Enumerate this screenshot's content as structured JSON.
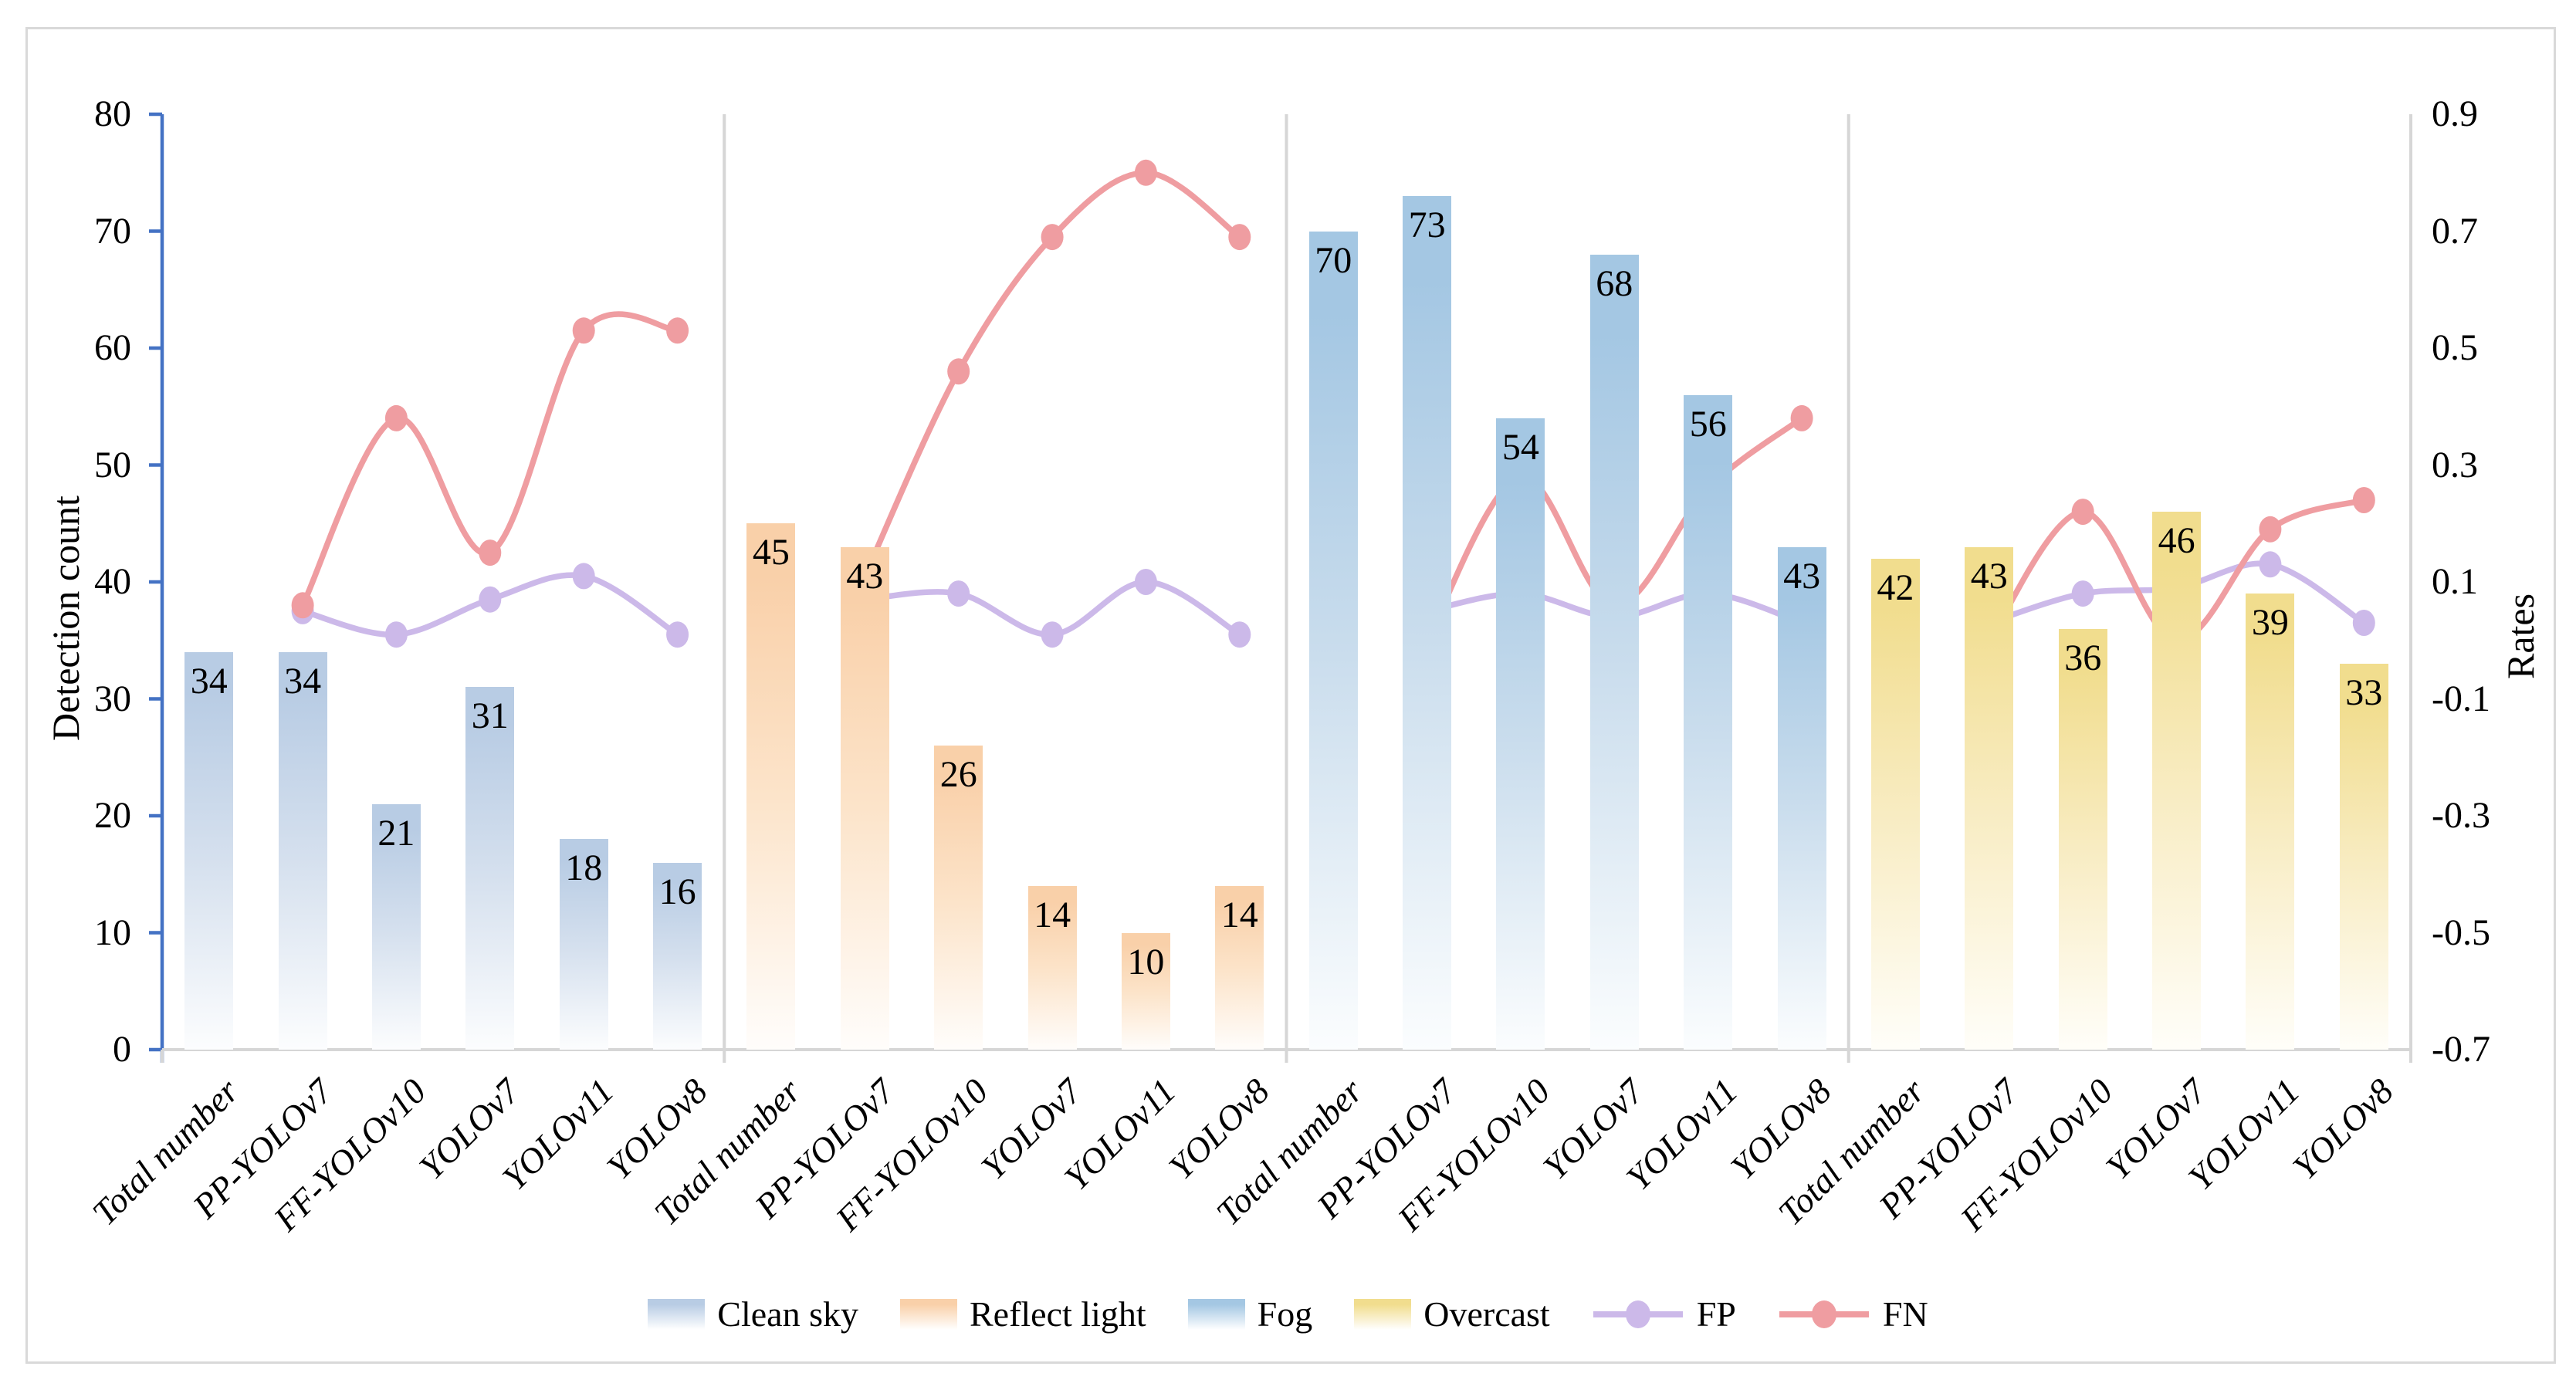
{
  "figure": {
    "background": "#ffffff",
    "border_color": "#d9d9d9"
  },
  "chart_data": {
    "type": "bar+line-combo",
    "categories": [
      "Total number",
      "PP-YOLOv7",
      "FF-YOLOv10",
      "YOLOv7",
      "YOLOv11",
      "YOLOv8"
    ],
    "left_axis": {
      "title": "Detection count",
      "min": 0,
      "max": 80,
      "tick_step": 10,
      "ticks": [
        0,
        10,
        20,
        30,
        40,
        50,
        60,
        70,
        80
      ],
      "axis_color": "#4472c4"
    },
    "right_axis": {
      "title": "Rates",
      "min": -0.7,
      "max": 0.9,
      "tick_step": 0.2,
      "ticks": [
        0.9,
        0.7,
        0.5,
        0.3,
        0.1,
        -0.1,
        -0.3,
        -0.5,
        -0.7
      ],
      "axis_color": "#d6d6d6"
    },
    "grid": "off",
    "legend_position": "bottom",
    "bar_groups": [
      {
        "name": "Clean sky",
        "color": "#b8cce4",
        "values": [
          34,
          34,
          21,
          31,
          18,
          16
        ],
        "fp_rates": [
          0.05,
          0.01,
          0.07,
          0.11,
          0.01
        ],
        "fn_rates": [
          0.06,
          0.38,
          0.15,
          0.53,
          0.53
        ]
      },
      {
        "name": "Reflect light",
        "color": "#f9d0a9",
        "values": [
          45,
          43,
          26,
          14,
          10,
          14
        ],
        "fp_rates": [
          0.07,
          0.08,
          0.01,
          0.1,
          0.01
        ],
        "fn_rates": [
          0.11,
          0.46,
          0.69,
          0.8,
          0.69
        ]
      },
      {
        "name": "Fog",
        "color": "#a4c7e3",
        "values": [
          70,
          73,
          54,
          68,
          56,
          43
        ],
        "fp_rates": [
          0.05,
          0.08,
          0.04,
          0.08,
          0.03
        ],
        "fn_rates": [
          0.0,
          0.28,
          0.06,
          0.26,
          0.38
        ]
      },
      {
        "name": "Overcast",
        "color": "#f1dd8e",
        "values": [
          42,
          43,
          36,
          46,
          39,
          33
        ],
        "fp_rates": [
          0.03,
          0.08,
          0.09,
          0.13,
          0.03
        ],
        "fn_rates": [
          0.0,
          0.22,
          0.0,
          0.19,
          0.24
        ]
      }
    ],
    "line_series": [
      {
        "name": "FP",
        "color": "#ccb9e9",
        "axis": "right",
        "note": "no point at Total number"
      },
      {
        "name": "FN",
        "color": "#ef9da1",
        "axis": "right",
        "note": "no point at Total number"
      }
    ]
  },
  "legend": {
    "items": [
      {
        "label": "Clean sky",
        "type": "swatch",
        "color": "#b8cce4"
      },
      {
        "label": "Reflect light",
        "type": "swatch",
        "color": "#f9d0a9"
      },
      {
        "label": "Fog",
        "type": "swatch",
        "color": "#a4c7e3"
      },
      {
        "label": "Overcast",
        "type": "swatch",
        "color": "#f1dd8e"
      },
      {
        "label": "FP",
        "type": "line-marker",
        "color": "#ccb9e9"
      },
      {
        "label": "FN",
        "type": "line-marker",
        "color": "#ef9da1"
      }
    ]
  },
  "titles": {
    "left_axis": "Detection count",
    "right_axis": "Rates"
  }
}
